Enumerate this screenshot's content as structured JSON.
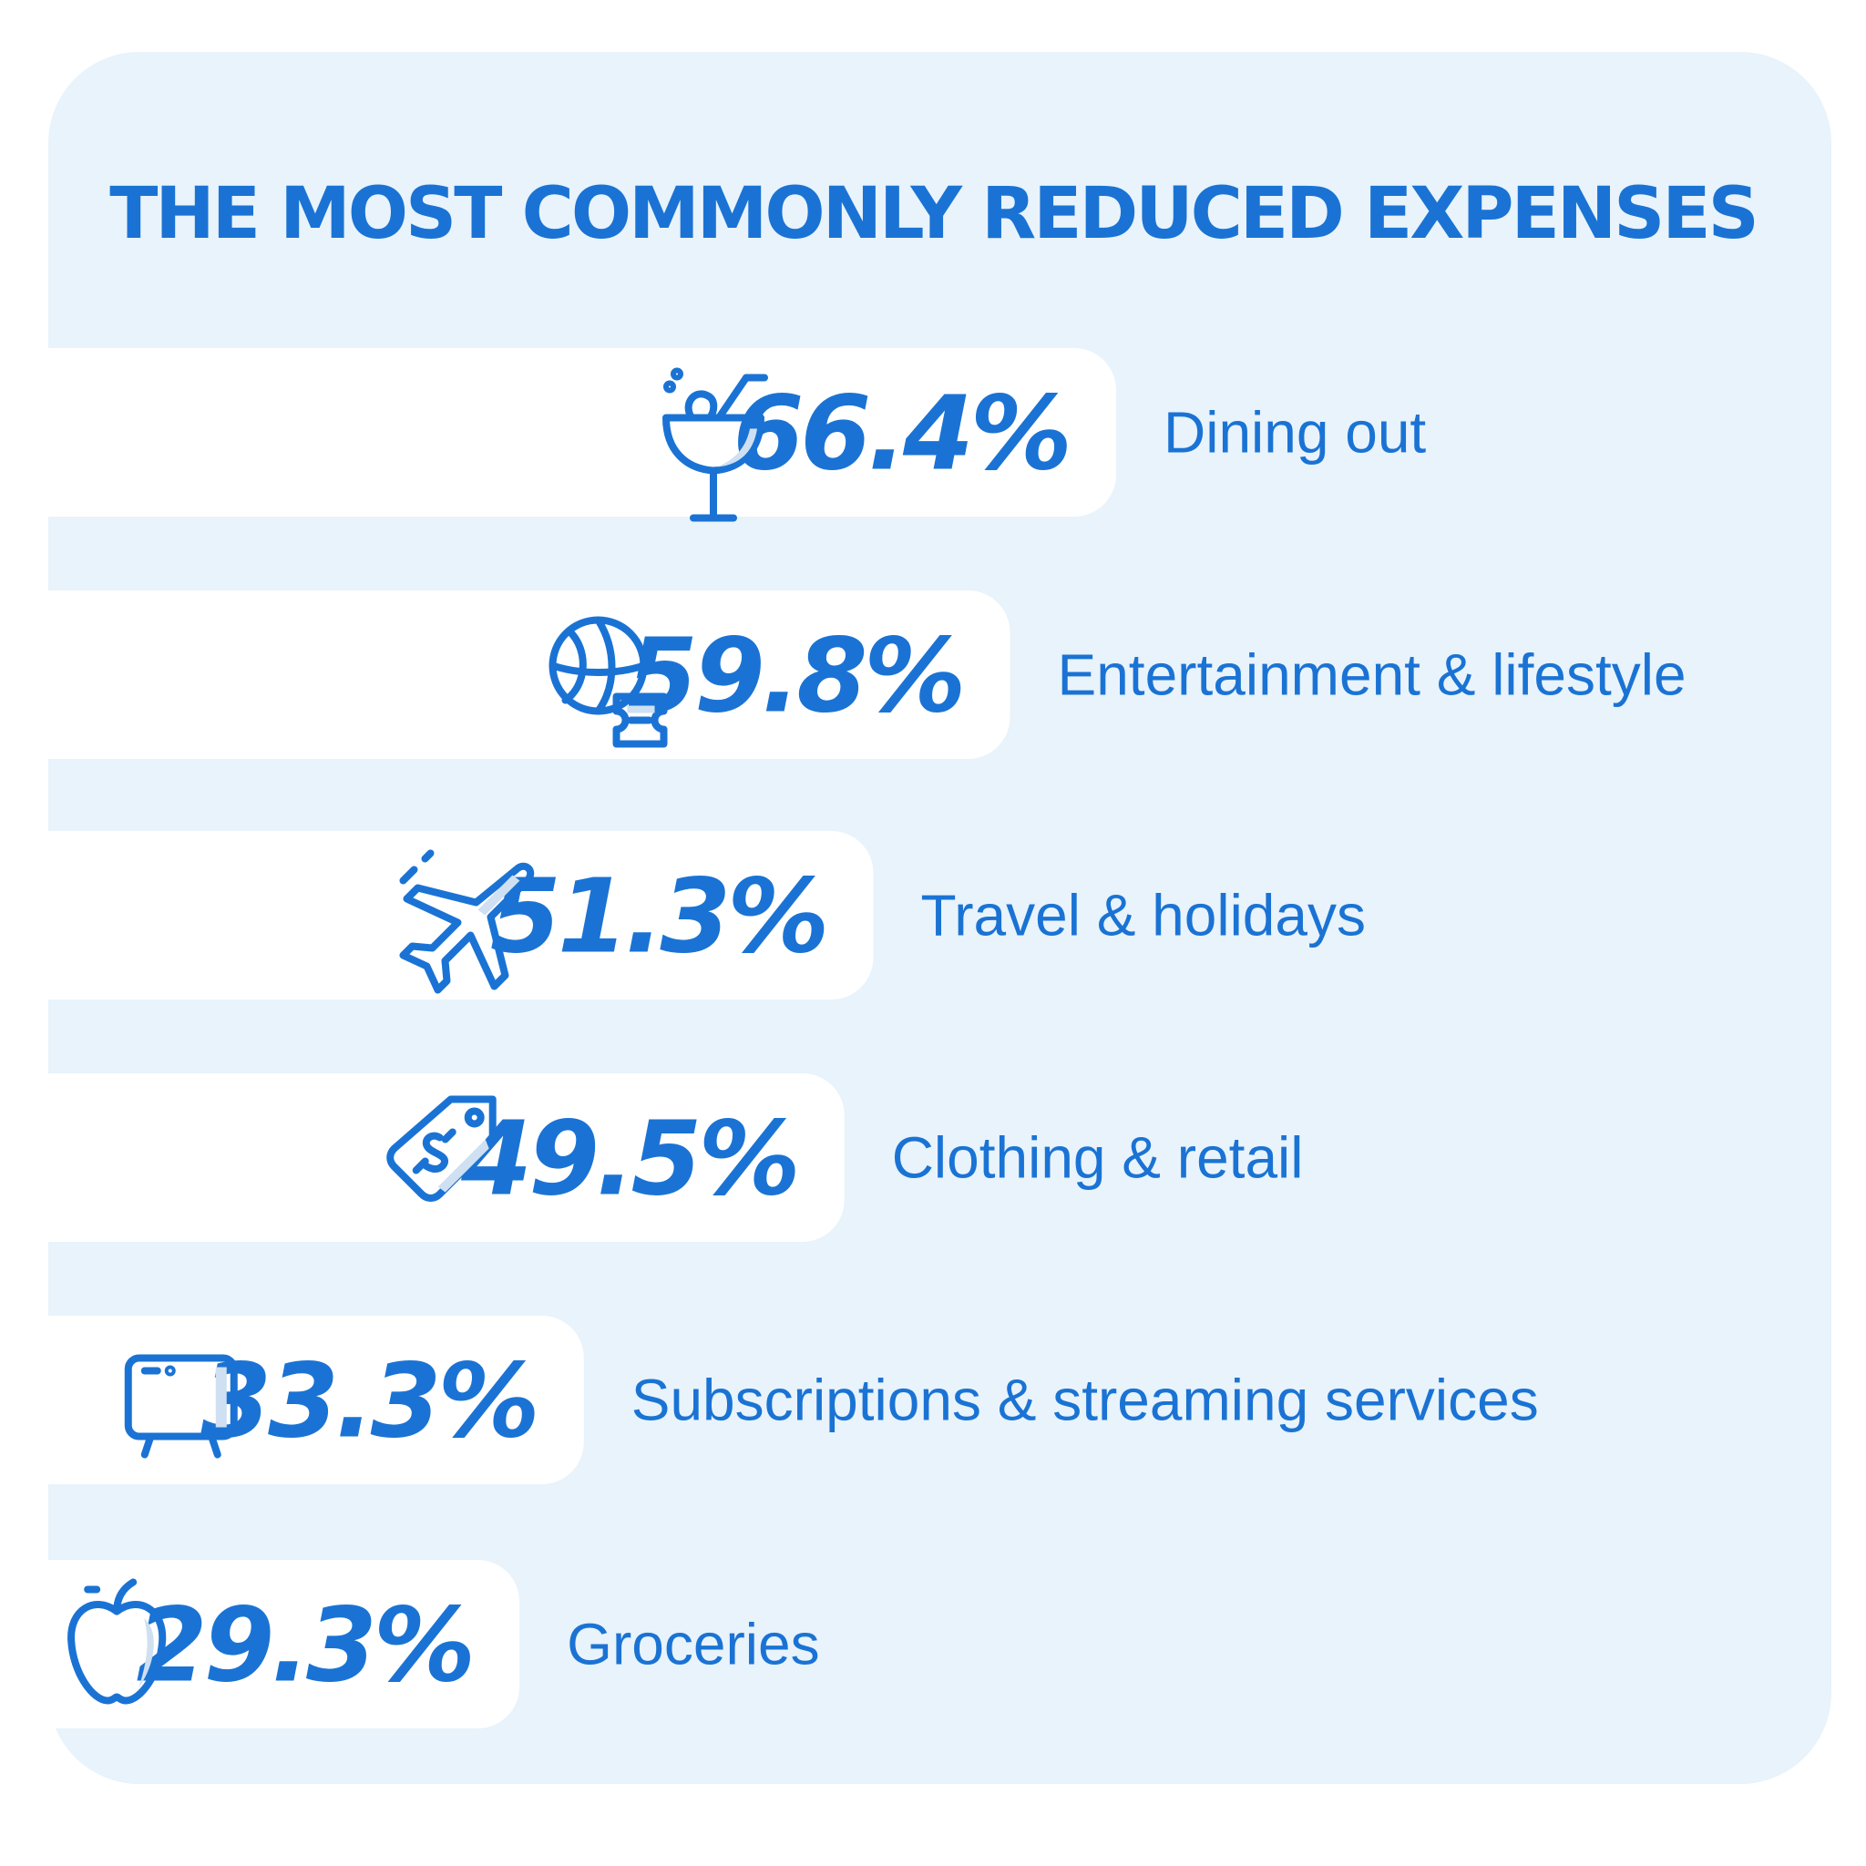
{
  "chart_data": {
    "type": "bar",
    "orientation": "horizontal",
    "title": "THE MOST COMMONLY REDUCED EXPENSES",
    "categories": [
      "Dining out",
      "Entertainment & lifestyle",
      "Travel & holidays",
      "Clothing & retail",
      "Subscriptions & streaming services",
      "Groceries"
    ],
    "values": [
      66.4,
      59.8,
      51.3,
      49.5,
      33.3,
      29.3
    ],
    "value_labels": [
      "66.4%",
      "59.8%",
      "51.3%",
      "49.5%",
      "33.3%",
      "29.3%"
    ],
    "icons": [
      "cocktail-icon",
      "ball-ticket-icon",
      "airplane-icon",
      "price-tag-icon",
      "tv-icon",
      "apple-icon"
    ],
    "unit": "%",
    "grid": false,
    "legend": "none"
  },
  "colors": {
    "accent": "#1a73d4",
    "panel": "#e8f3fb",
    "bar": "#ffffff",
    "icon_shade": "#cfe0f2"
  }
}
